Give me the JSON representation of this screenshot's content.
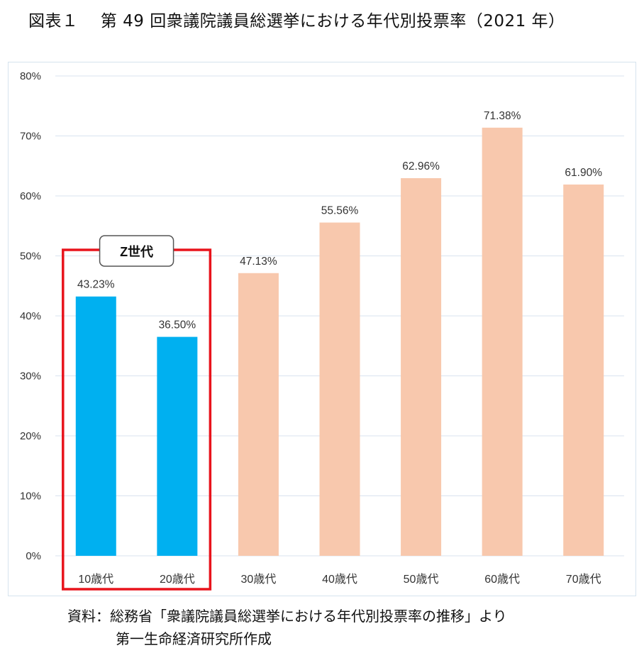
{
  "header": {
    "title": "図表１　 第 49 回衆議院議員総選挙における年代別投票率（2021 年）"
  },
  "annotation": {
    "z_generation_label": "Z世代"
  },
  "source": {
    "line1": "資料：総務省「衆議院議員総選挙における年代別投票率の推移」より",
    "line2": "第一生命経済研究所作成"
  },
  "colors": {
    "highlight_bar": "#00b0f0",
    "normal_bar": "#f8c8ad",
    "gridline": "#d9e3ef",
    "highlight_box": "#e8141c"
  },
  "chart_data": {
    "type": "bar",
    "categories": [
      "10歳代",
      "20歳代",
      "30歳代",
      "40歳代",
      "50歳代",
      "60歳代",
      "70歳代"
    ],
    "values": [
      43.23,
      36.5,
      47.13,
      55.56,
      62.96,
      71.38,
      61.9
    ],
    "data_labels": [
      "43.23%",
      "36.50%",
      "47.13%",
      "55.56%",
      "62.96%",
      "71.38%",
      "61.90%"
    ],
    "highlighted_categories": [
      "10歳代",
      "20歳代"
    ],
    "ylim": [
      0,
      80
    ],
    "yticks": [
      "0%",
      "10%",
      "20%",
      "30%",
      "40%",
      "50%",
      "60%",
      "70%",
      "80%"
    ],
    "grid": true,
    "title": "",
    "xlabel": "",
    "ylabel": ""
  }
}
